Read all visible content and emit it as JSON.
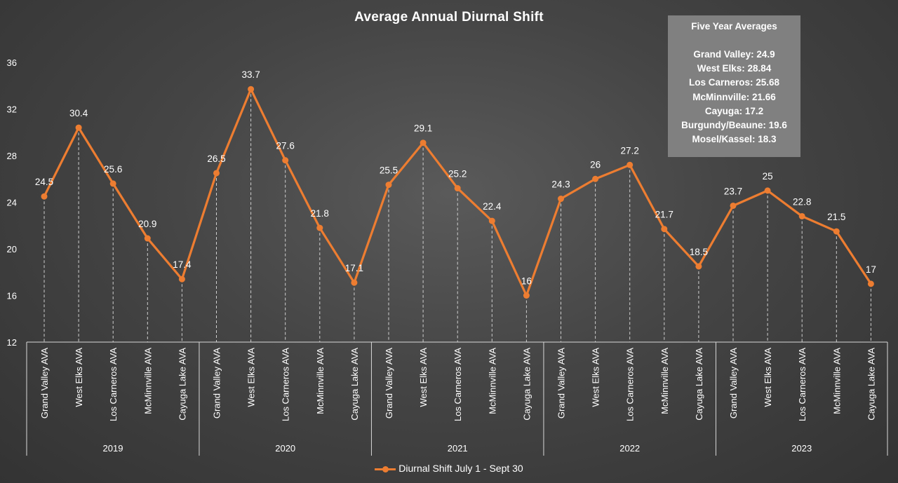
{
  "chart_data": {
    "type": "line",
    "title": "Average Annual Diurnal Shift",
    "ylim": [
      12,
      36
    ],
    "yticks": [
      12,
      16,
      20,
      24,
      28,
      32,
      36
    ],
    "groups": [
      {
        "label": "2019",
        "categories": [
          "Grand Valley AVA",
          "West Elks AVA",
          "Los Carneros AVA",
          "McMinnville AVA",
          "Cayuga Lake AVA"
        ]
      },
      {
        "label": "2020",
        "categories": [
          "Grand Valley AVA",
          "West Elks AVA",
          "Los Carneros AVA",
          "McMinnville AVA",
          "Cayuga Lake AVA"
        ]
      },
      {
        "label": "2021",
        "categories": [
          "Grand Valley AVA",
          "West Elks AVA",
          "Los Carneros AVA",
          "McMinnville AVA",
          "Cayuga Lake AVA"
        ]
      },
      {
        "label": "2022",
        "categories": [
          "Grand Valley AVA",
          "West Elks AVA",
          "Los Carneros AVA",
          "McMinnville AVA",
          "Cayuga Lake AVA"
        ]
      },
      {
        "label": "2023",
        "categories": [
          "Grand Valley AVA",
          "West Elks AVA",
          "Los Carneros AVA",
          "McMinnville AVA",
          "Cayuga Lake AVA"
        ]
      }
    ],
    "series": [
      {
        "name": "Diurnal Shift July 1 - Sept 30",
        "color": "#ed7d31",
        "values": [
          24.5,
          30.4,
          25.6,
          20.9,
          17.4,
          26.5,
          33.7,
          27.6,
          21.8,
          17.1,
          25.5,
          29.1,
          25.2,
          22.4,
          16,
          24.3,
          26,
          27.2,
          21.7,
          18.5,
          23.7,
          25,
          22.8,
          21.5,
          17
        ]
      }
    ],
    "legend": "bottom",
    "grid": false,
    "drop_lines": true
  },
  "averages_box": {
    "header": "Five Year Averages",
    "rows": [
      "Grand Valley: 24.9",
      "West Elks: 28.84",
      "Los Carneros: 25.68",
      "McMinnville: 21.66",
      "Cayuga: 17.2",
      "Burgundy/Beaune: 19.6",
      "Mosel/Kassel: 18.3"
    ]
  }
}
